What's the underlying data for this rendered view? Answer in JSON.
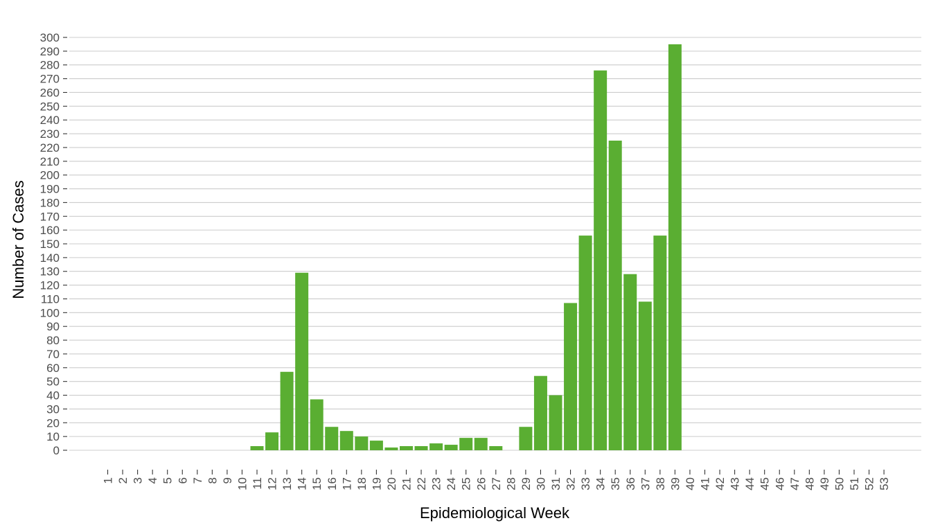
{
  "chart_data": {
    "type": "bar",
    "xlabel": "Epidemiological Week",
    "ylabel": "Number of Cases",
    "categories": [
      "1",
      "2",
      "3",
      "4",
      "5",
      "6",
      "7",
      "8",
      "9",
      "10",
      "11",
      "12",
      "13",
      "14",
      "15",
      "16",
      "17",
      "18",
      "19",
      "20",
      "21",
      "22",
      "23",
      "24",
      "25",
      "26",
      "27",
      "28",
      "29",
      "30",
      "31",
      "32",
      "33",
      "34",
      "35",
      "36",
      "37",
      "38",
      "39",
      "40",
      "41",
      "42",
      "43",
      "44",
      "45",
      "46",
      "47",
      "48",
      "49",
      "50",
      "51",
      "52",
      "53"
    ],
    "values": [
      0,
      0,
      0,
      0,
      0,
      0,
      0,
      0,
      0,
      0,
      3,
      13,
      57,
      129,
      37,
      17,
      14,
      10,
      7,
      2,
      3,
      3,
      5,
      4,
      9,
      9,
      3,
      0,
      17,
      54,
      40,
      107,
      156,
      276,
      225,
      128,
      108,
      156,
      295,
      0,
      0,
      0,
      0,
      0,
      0,
      0,
      0,
      0,
      0,
      0,
      0,
      0,
      0
    ],
    "ylim": [
      0,
      300
    ],
    "ytick_step": 10,
    "grid": true,
    "bar_color": "#5aae32",
    "grid_color": "#cccccc"
  }
}
